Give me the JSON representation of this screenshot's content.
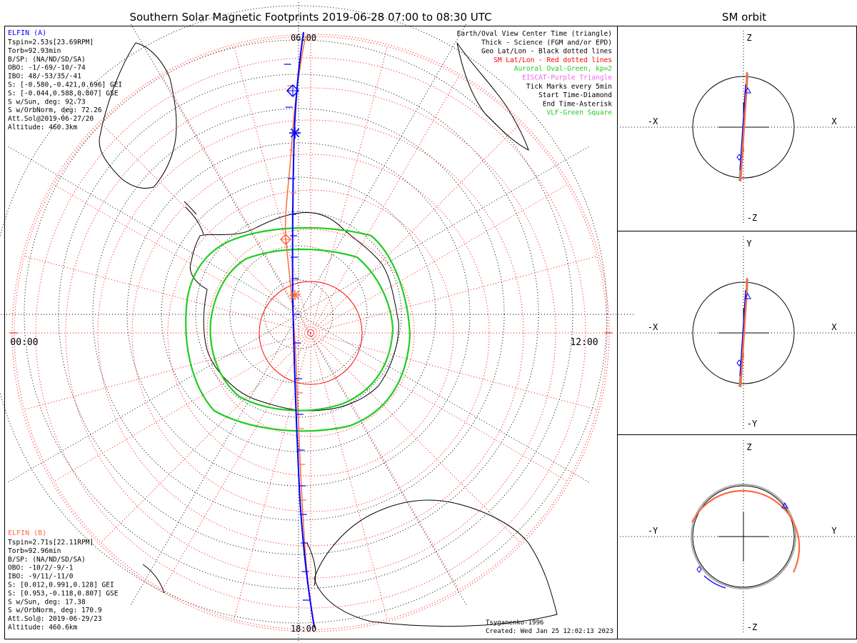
{
  "title": "Southern Solar Magnetic Footprints 2019-06-28 07:00 to 08:30 UTC",
  "sm_orbit_title": "SM orbit",
  "hour_labels": {
    "top": "06:00",
    "left": "00:00",
    "right": "12:00",
    "bottom": "18:00"
  },
  "elfin_a": {
    "name": "ELFIN (A)",
    "color": "#0000ff",
    "lines": [
      "Tspin=2.53s[23.69RPM]",
      "Torb=92.93min",
      "B/SP: (NA/ND/SD/SA)",
      "OBO: -1/-69/-10/-74",
      "IBO: 48/-53/35/-41",
      "S: [-0.580,-0.421,0.696] GEI",
      "S: [-0.044,0.588,0.807] GSE",
      "S w/Sun, deg: 92.73",
      "S w/OrbNorm, deg: 72.26",
      "Att.Sol@2019-06-27/20",
      "Altitude: 460.3km"
    ]
  },
  "elfin_b": {
    "name": "ELFIN (B)",
    "color": "#ff6a40",
    "lines": [
      "Tspin=2.71s[22.11RPM]",
      "Torb=92.96min",
      "B/SP: (NA/ND/SD/SA)",
      "OBO: -10/2/-9/-1",
      "IBO: -9/11/-11/0",
      "S: [0.012,0.991,0.128] GEI",
      "S: [0.953,-0.118,0.807] GSE",
      "S w/Sun, deg: 17.38",
      "S w/OrbNorm, deg: 170.9",
      "Att.Sol@: 2019-06-29/23",
      "Altitude: 460.6km"
    ]
  },
  "legend": [
    {
      "text": "Earth/Oval View Center Time (triangle)",
      "color": "#000000"
    },
    {
      "text": "Thick - Science (FGM and/or EPD)",
      "color": "#000000"
    },
    {
      "text": "Geo Lat/Lon - Black dotted lines",
      "color": "#000000"
    },
    {
      "text": "SM Lat/Lon - Red dotted lines",
      "color": "#ff0000"
    },
    {
      "text": "Auroral Oval-Green, kp=2",
      "color": "#22cc22"
    },
    {
      "text": "EISCAT-Purple Triangle",
      "color": "#ee66ee"
    },
    {
      "text": "Tick Marks every 5min",
      "color": "#000000"
    },
    {
      "text": "Start Time-Diamond",
      "color": "#000000"
    },
    {
      "text": "End Time-Asterisk",
      "color": "#000000"
    },
    {
      "text": "VLF-Green Square",
      "color": "#22cc22"
    }
  ],
  "model_label": "Tsyganenko-1996",
  "created_label": "Created: Wed Jan 25 12:02:13 2023",
  "orbit_panels": [
    {
      "top": "Z",
      "bottom": "-Z",
      "left": "-X",
      "right": "X"
    },
    {
      "top": "Y",
      "bottom": "-Y",
      "left": "-X",
      "right": "X"
    },
    {
      "top": "Z",
      "bottom": "-Z",
      "left": "-Y",
      "right": "Y"
    }
  ],
  "colors": {
    "elfin_a": "#0000ff",
    "elfin_b": "#ff6a40",
    "sm_grid": "#ff0000",
    "auroral_oval": "#22cc22",
    "eiscat": "#ee66ee",
    "geo_grid": "#000000"
  }
}
